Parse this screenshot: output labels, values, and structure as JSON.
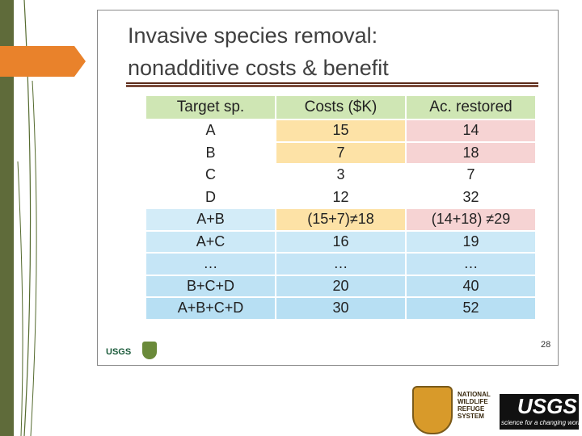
{
  "slide": {
    "title_lines": [
      "Invasive species removal:",
      "nonadditive costs & benefit"
    ],
    "page_number": 28
  },
  "table": {
    "header": [
      "Target sp.",
      "Costs ($K)",
      "Ac. restored"
    ],
    "rows": [
      [
        "A",
        15,
        14
      ],
      [
        "B",
        7,
        18
      ],
      [
        "C",
        3,
        7
      ],
      [
        "D",
        12,
        32
      ],
      [
        "A+B",
        "(15+7)≠18",
        "(14+18) ≠29"
      ],
      [
        "A+C",
        16,
        19
      ],
      [
        "…",
        "…",
        "…"
      ],
      [
        "B+C+D",
        20,
        40
      ],
      [
        "A+B+C+D",
        30,
        52
      ]
    ]
  },
  "logos": {
    "slide_logo": "USGS",
    "refuge": "NATIONAL WILDLIFE REFUGE SYSTEM",
    "usgs": "USGS",
    "usgs_tagline": "science for a changing world"
  }
}
